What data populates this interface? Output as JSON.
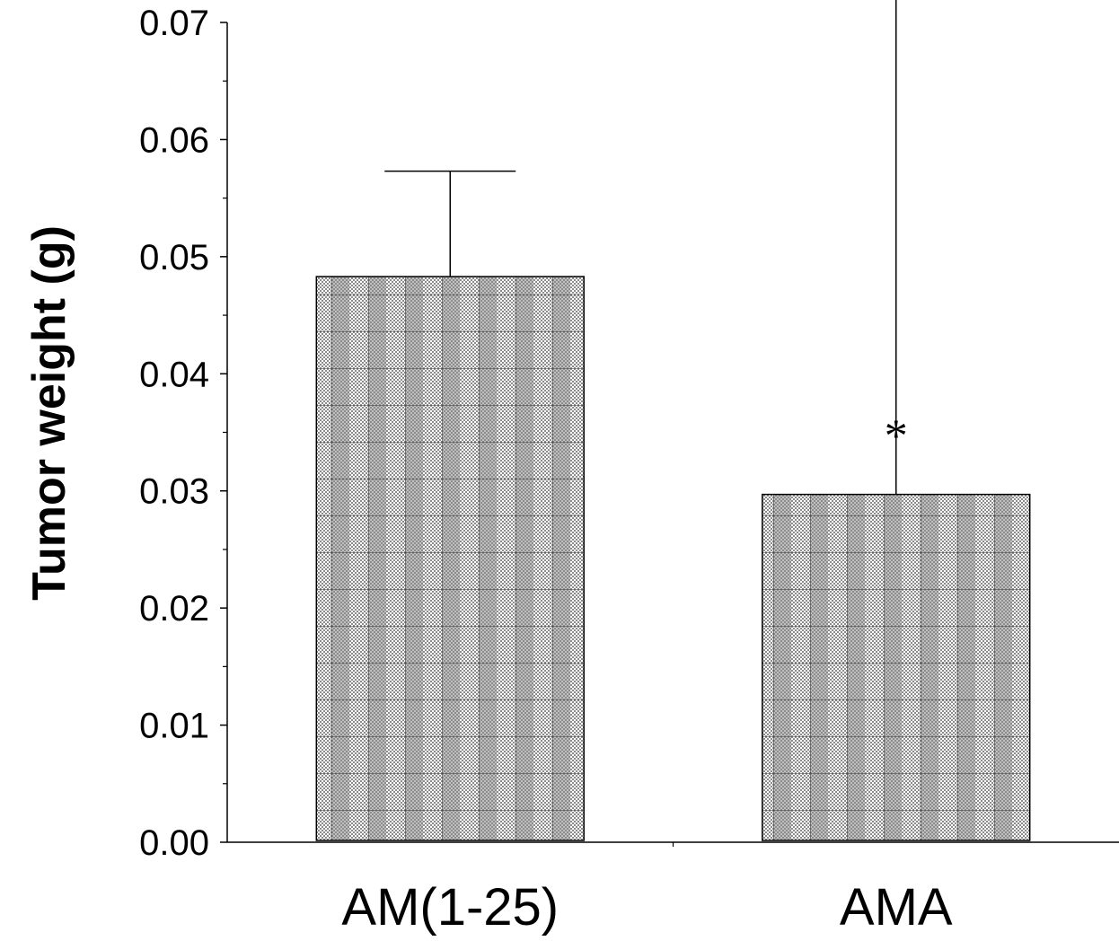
{
  "chart_data": {
    "type": "bar",
    "ylabel": "Tumor weight (g)",
    "xlabel": "",
    "categories": [
      "AM(1-25)",
      "AMA"
    ],
    "values": [
      0.0483,
      0.0297
    ],
    "error_upper": [
      0.0573,
      0.0785
    ],
    "annotations": [
      "",
      "*"
    ],
    "ylim": [
      0,
      0.07
    ],
    "yticks": [
      "0.00",
      "0.01",
      "0.02",
      "0.03",
      "0.04",
      "0.05",
      "0.06",
      "0.07"
    ],
    "grid": false,
    "legend": "none",
    "bar_pattern": "checkered-grey",
    "colors": {
      "bar_fill": "#8c8c8c",
      "bar_check": "#ffffff",
      "line": "#000000"
    }
  }
}
